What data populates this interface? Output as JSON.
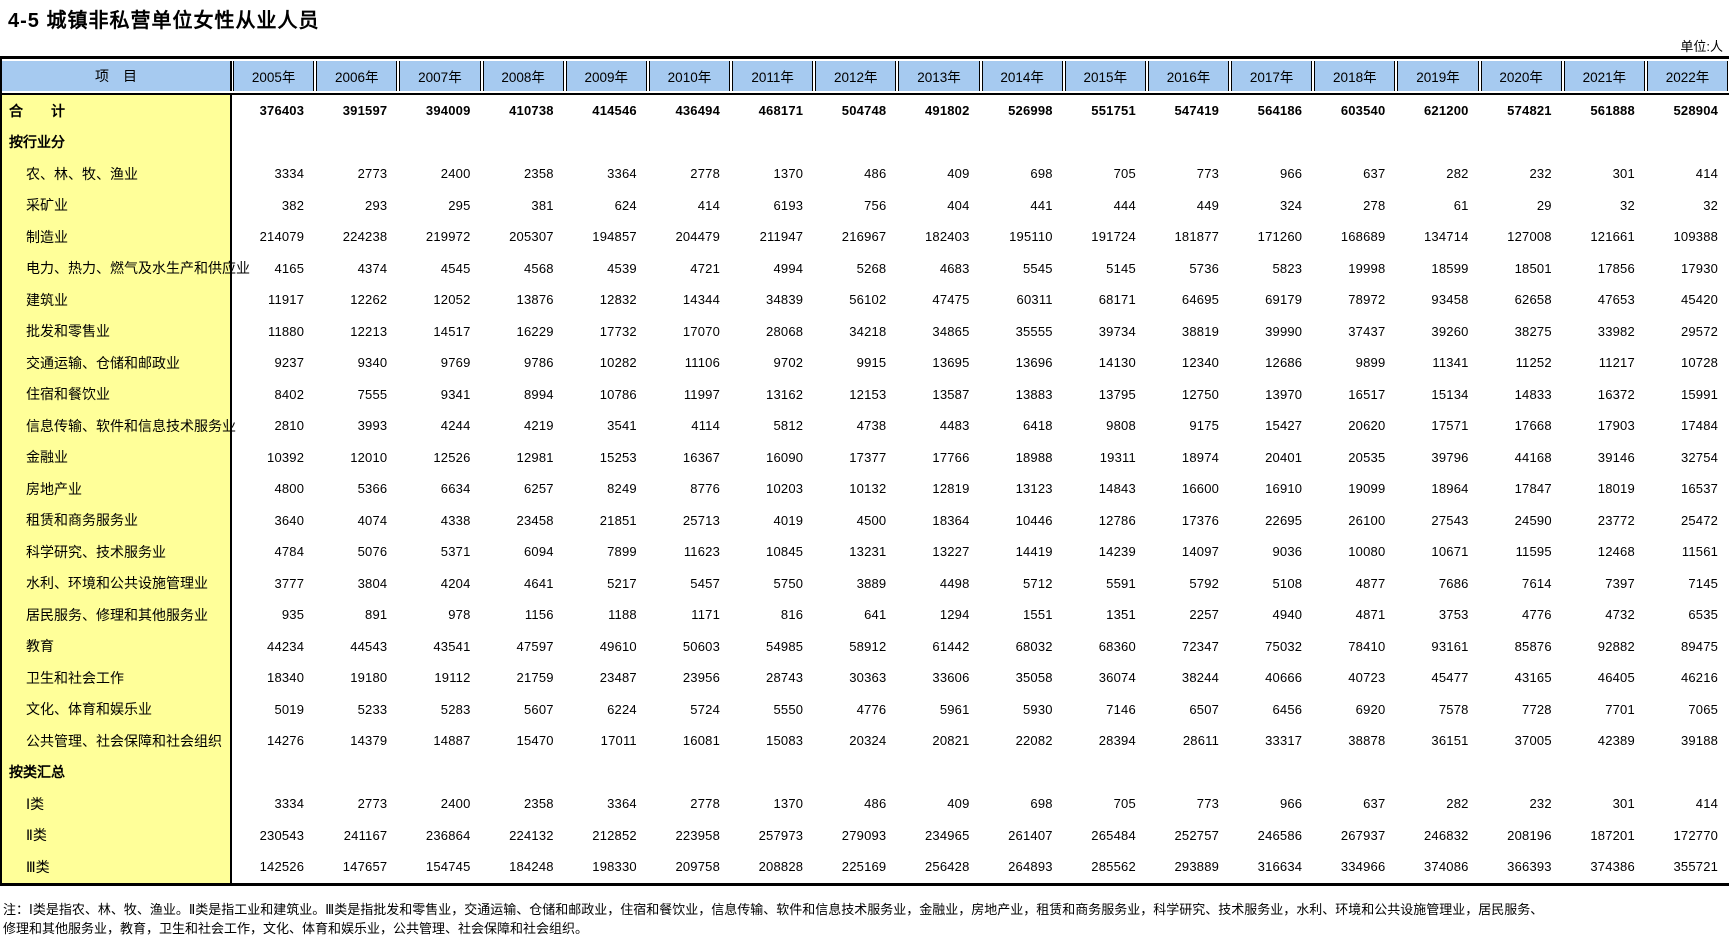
{
  "page": {
    "title": "4-5 城镇非私营单位女性从业人员",
    "unit_label": "单位:人"
  },
  "colors": {
    "header_bg": "#A6CAF0",
    "item_column_bg": "#FFFF99",
    "border": "#000000"
  },
  "table": {
    "item_header": "项　目",
    "year_columns": [
      "2005年",
      "2006年",
      "2007年",
      "2008年",
      "2009年",
      "2010年",
      "2011年",
      "2012年",
      "2013年",
      "2014年",
      "2015年",
      "2016年",
      "2017年",
      "2018年",
      "2019年",
      "2020年",
      "2021年",
      "2022年"
    ],
    "rows": [
      {
        "label": "合　　计",
        "type": "total",
        "values": [
          376403,
          391597,
          394009,
          410738,
          414546,
          436494,
          468171,
          504748,
          491802,
          526998,
          551751,
          547419,
          564186,
          603540,
          621200,
          574821,
          561888,
          528904
        ]
      },
      {
        "label": "按行业分",
        "type": "section",
        "values": []
      },
      {
        "label": "农、林、牧、渔业",
        "type": "data",
        "values": [
          3334,
          2773,
          2400,
          2358,
          3364,
          2778,
          1370,
          486,
          409,
          698,
          705,
          773,
          966,
          637,
          282,
          232,
          301,
          414
        ]
      },
      {
        "label": "采矿业",
        "type": "data",
        "values": [
          382,
          293,
          295,
          381,
          624,
          414,
          6193,
          756,
          404,
          441,
          444,
          449,
          324,
          278,
          61,
          29,
          32,
          32
        ]
      },
      {
        "label": "制造业",
        "type": "data",
        "values": [
          214079,
          224238,
          219972,
          205307,
          194857,
          204479,
          211947,
          216967,
          182403,
          195110,
          191724,
          181877,
          171260,
          168689,
          134714,
          127008,
          121661,
          109388
        ]
      },
      {
        "label": "电力、热力、燃气及水生产和供应业",
        "type": "data",
        "values": [
          4165,
          4374,
          4545,
          4568,
          4539,
          4721,
          4994,
          5268,
          4683,
          5545,
          5145,
          5736,
          5823,
          19998,
          18599,
          18501,
          17856,
          17930
        ]
      },
      {
        "label": "建筑业",
        "type": "data",
        "values": [
          11917,
          12262,
          12052,
          13876,
          12832,
          14344,
          34839,
          56102,
          47475,
          60311,
          68171,
          64695,
          69179,
          78972,
          93458,
          62658,
          47653,
          45420
        ]
      },
      {
        "label": "批发和零售业",
        "type": "data",
        "values": [
          11880,
          12213,
          14517,
          16229,
          17732,
          17070,
          28068,
          34218,
          34865,
          35555,
          39734,
          38819,
          39990,
          37437,
          39260,
          38275,
          33982,
          29572
        ]
      },
      {
        "label": "交通运输、仓储和邮政业",
        "type": "data",
        "values": [
          9237,
          9340,
          9769,
          9786,
          10282,
          11106,
          9702,
          9915,
          13695,
          13696,
          14130,
          12340,
          12686,
          9899,
          11341,
          11252,
          11217,
          10728
        ]
      },
      {
        "label": "住宿和餐饮业",
        "type": "data",
        "values": [
          8402,
          7555,
          9341,
          8994,
          10786,
          11997,
          13162,
          12153,
          13587,
          13883,
          13795,
          12750,
          13970,
          16517,
          15134,
          14833,
          16372,
          15991
        ]
      },
      {
        "label": "信息传输、软件和信息技术服务业",
        "type": "data",
        "values": [
          2810,
          3993,
          4244,
          4219,
          3541,
          4114,
          5812,
          4738,
          4483,
          6418,
          9808,
          9175,
          15427,
          20620,
          17571,
          17668,
          17903,
          17484
        ]
      },
      {
        "label": "金融业",
        "type": "data",
        "values": [
          10392,
          12010,
          12526,
          12981,
          15253,
          16367,
          16090,
          17377,
          17766,
          18988,
          19311,
          18974,
          20401,
          20535,
          39796,
          44168,
          39146,
          32754
        ]
      },
      {
        "label": "房地产业",
        "type": "data",
        "values": [
          4800,
          5366,
          6634,
          6257,
          8249,
          8776,
          10203,
          10132,
          12819,
          13123,
          14843,
          16600,
          16910,
          19099,
          18964,
          17847,
          18019,
          16537
        ]
      },
      {
        "label": "租赁和商务服务业",
        "type": "data",
        "values": [
          3640,
          4074,
          4338,
          23458,
          21851,
          25713,
          4019,
          4500,
          18364,
          10446,
          12786,
          17376,
          22695,
          26100,
          27543,
          24590,
          23772,
          25472
        ]
      },
      {
        "label": "科学研究、技术服务业",
        "type": "data",
        "values": [
          4784,
          5076,
          5371,
          6094,
          7899,
          11623,
          10845,
          13231,
          13227,
          14419,
          14239,
          14097,
          9036,
          10080,
          10671,
          11595,
          12468,
          11561
        ]
      },
      {
        "label": "水利、环境和公共设施管理业",
        "type": "data",
        "values": [
          3777,
          3804,
          4204,
          4641,
          5217,
          5457,
          5750,
          3889,
          4498,
          5712,
          5591,
          5792,
          5108,
          4877,
          7686,
          7614,
          7397,
          7145
        ]
      },
      {
        "label": "居民服务、修理和其他服务业",
        "type": "data",
        "values": [
          935,
          891,
          978,
          1156,
          1188,
          1171,
          816,
          641,
          1294,
          1551,
          1351,
          2257,
          4940,
          4871,
          3753,
          4776,
          4732,
          6535
        ]
      },
      {
        "label": "教育",
        "type": "data",
        "values": [
          44234,
          44543,
          43541,
          47597,
          49610,
          50603,
          54985,
          58912,
          61442,
          68032,
          68360,
          72347,
          75032,
          78410,
          93161,
          85876,
          92882,
          89475
        ]
      },
      {
        "label": "卫生和社会工作",
        "type": "data",
        "values": [
          18340,
          19180,
          19112,
          21759,
          23487,
          23956,
          28743,
          30363,
          33606,
          35058,
          36074,
          38244,
          40666,
          40723,
          45477,
          43165,
          46405,
          46216
        ]
      },
      {
        "label": "文化、体育和娱乐业",
        "type": "data",
        "values": [
          5019,
          5233,
          5283,
          5607,
          6224,
          5724,
          5550,
          4776,
          5961,
          5930,
          7146,
          6507,
          6456,
          6920,
          7578,
          7728,
          7701,
          7065
        ]
      },
      {
        "label": "公共管理、社会保障和社会组织",
        "type": "data",
        "values": [
          14276,
          14379,
          14887,
          15470,
          17011,
          16081,
          15083,
          20324,
          20821,
          22082,
          28394,
          28611,
          33317,
          38878,
          36151,
          37005,
          42389,
          39188
        ]
      },
      {
        "label": "按类汇总",
        "type": "section",
        "values": []
      },
      {
        "label": "Ⅰ类",
        "type": "data",
        "values": [
          3334,
          2773,
          2400,
          2358,
          3364,
          2778,
          1370,
          486,
          409,
          698,
          705,
          773,
          966,
          637,
          282,
          232,
          301,
          414
        ]
      },
      {
        "label": "Ⅱ类",
        "type": "data",
        "values": [
          230543,
          241167,
          236864,
          224132,
          212852,
          223958,
          257973,
          279093,
          234965,
          261407,
          265484,
          252757,
          246586,
          267937,
          246832,
          208196,
          187201,
          172770
        ]
      },
      {
        "label": "Ⅲ类",
        "type": "data",
        "values": [
          142526,
          147657,
          154745,
          184248,
          198330,
          209758,
          208828,
          225169,
          256428,
          264893,
          285562,
          293889,
          316634,
          334966,
          374086,
          366393,
          374386,
          355721
        ]
      }
    ]
  },
  "footnote": {
    "text": "注：Ⅰ类是指农、林、牧、渔业。Ⅱ类是指工业和建筑业。Ⅲ类是指批发和零售业，交通运输、仓储和邮政业，住宿和餐饮业，信息传输、软件和信息技术服务业，金融业，房地产业，租赁和商务服务业，科学研究、技术服务业，水利、环境和公共设施管理业，居民服务、修理和其他服务业，教育，卫生和社会工作，文化、体育和娱乐业，公共管理、社会保障和社会组织。"
  }
}
